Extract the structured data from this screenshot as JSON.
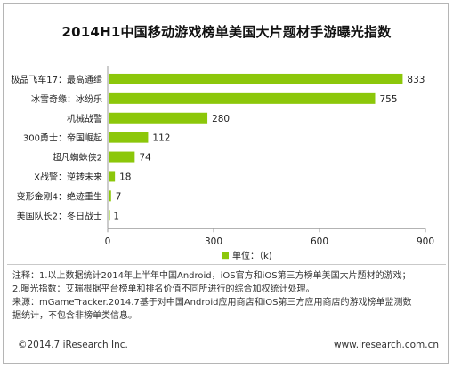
{
  "title": "2014H1中国移动游戏榜单美国大片题材手游曝光指数",
  "chart_data": {
    "type": "bar",
    "orientation": "horizontal",
    "categories": [
      "极品飞车17：最高通缉",
      "冰雪奇缘：冰纷乐",
      "机械战警",
      "300勇士：帝国崛起",
      "超凡蜘蛛侠2",
      "X战警：逆转未来",
      "变形金刚4：绝迹重生",
      "美国队长2：冬日战士"
    ],
    "values": [
      833,
      755,
      280,
      112,
      74,
      18,
      7,
      1
    ],
    "value_labels": [
      "833",
      "755",
      "280",
      "112",
      "74",
      "18",
      "7",
      "1"
    ],
    "xlim": [
      0,
      900
    ],
    "xticks": [
      "0",
      "300",
      "600",
      "900"
    ],
    "legend": {
      "label": "单位：（k)",
      "position": "bottom-center"
    },
    "grid": false,
    "bar_color": "#8cc70a"
  },
  "notes": {
    "line1": "注释：1.以上数据统计2014年上半年中国Android，iOS官方和iOS第三方榜单美国大片题材的游戏；",
    "line2": "2.曝光指数：艾瑞根据平台榜单和排名价值不同所进行的综合加权统计处理。",
    "line3": "来源：mGameTracker.2014.7基于对中国Android应用商店和iOS第三方应用商店的游戏榜单监测数",
    "line4": "据统计，不包含非榜单类信息。"
  },
  "footer": {
    "copyright": "©2014.7 iResearch Inc.",
    "website": "www.iresearch.com.cn"
  }
}
